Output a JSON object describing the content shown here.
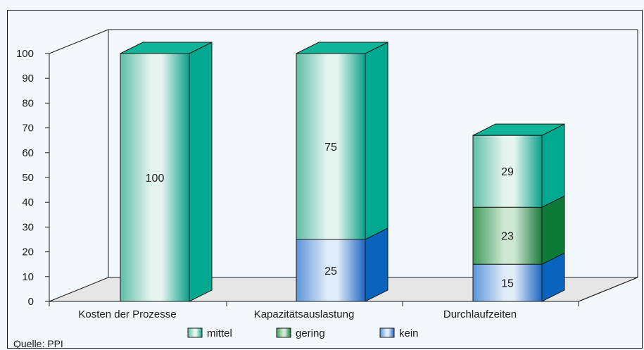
{
  "chart_data": {
    "type": "bar",
    "stacked": true,
    "three_d": true,
    "categories": [
      "Kosten der Prozesse",
      "Kapazitätsauslastung",
      "Durchlaufzeiten"
    ],
    "series": [
      {
        "name": "kein",
        "values": [
          0,
          25,
          15
        ]
      },
      {
        "name": "gering",
        "values": [
          0,
          0,
          23
        ]
      },
      {
        "name": "mittel",
        "values": [
          100,
          75,
          29
        ]
      }
    ],
    "ylim": [
      0,
      100
    ],
    "yticks": [
      0,
      10,
      20,
      30,
      40,
      50,
      60,
      70,
      80,
      90,
      100
    ],
    "legend_position": "bottom",
    "colors": {
      "mittel": {
        "light": "#e6f4ef",
        "mid": "#5fbfa6",
        "dark": "#0aa08a",
        "side": "#00a88f",
        "top": "#10b498"
      },
      "gering": {
        "light": "#cfe8d4",
        "mid": "#3f9a5a",
        "dark": "#1a7a3a",
        "side": "#0e7a38",
        "top": "#1b8f45"
      },
      "kein": {
        "light": "#e0ecf8",
        "mid": "#5c95d8",
        "dark": "#1f66c2",
        "side": "#0a63bd",
        "top": "#2f7cd1"
      },
      "floor": "#e6e6e6",
      "page_background": "#f2f8fc"
    }
  },
  "source": "Quelle: PPI"
}
